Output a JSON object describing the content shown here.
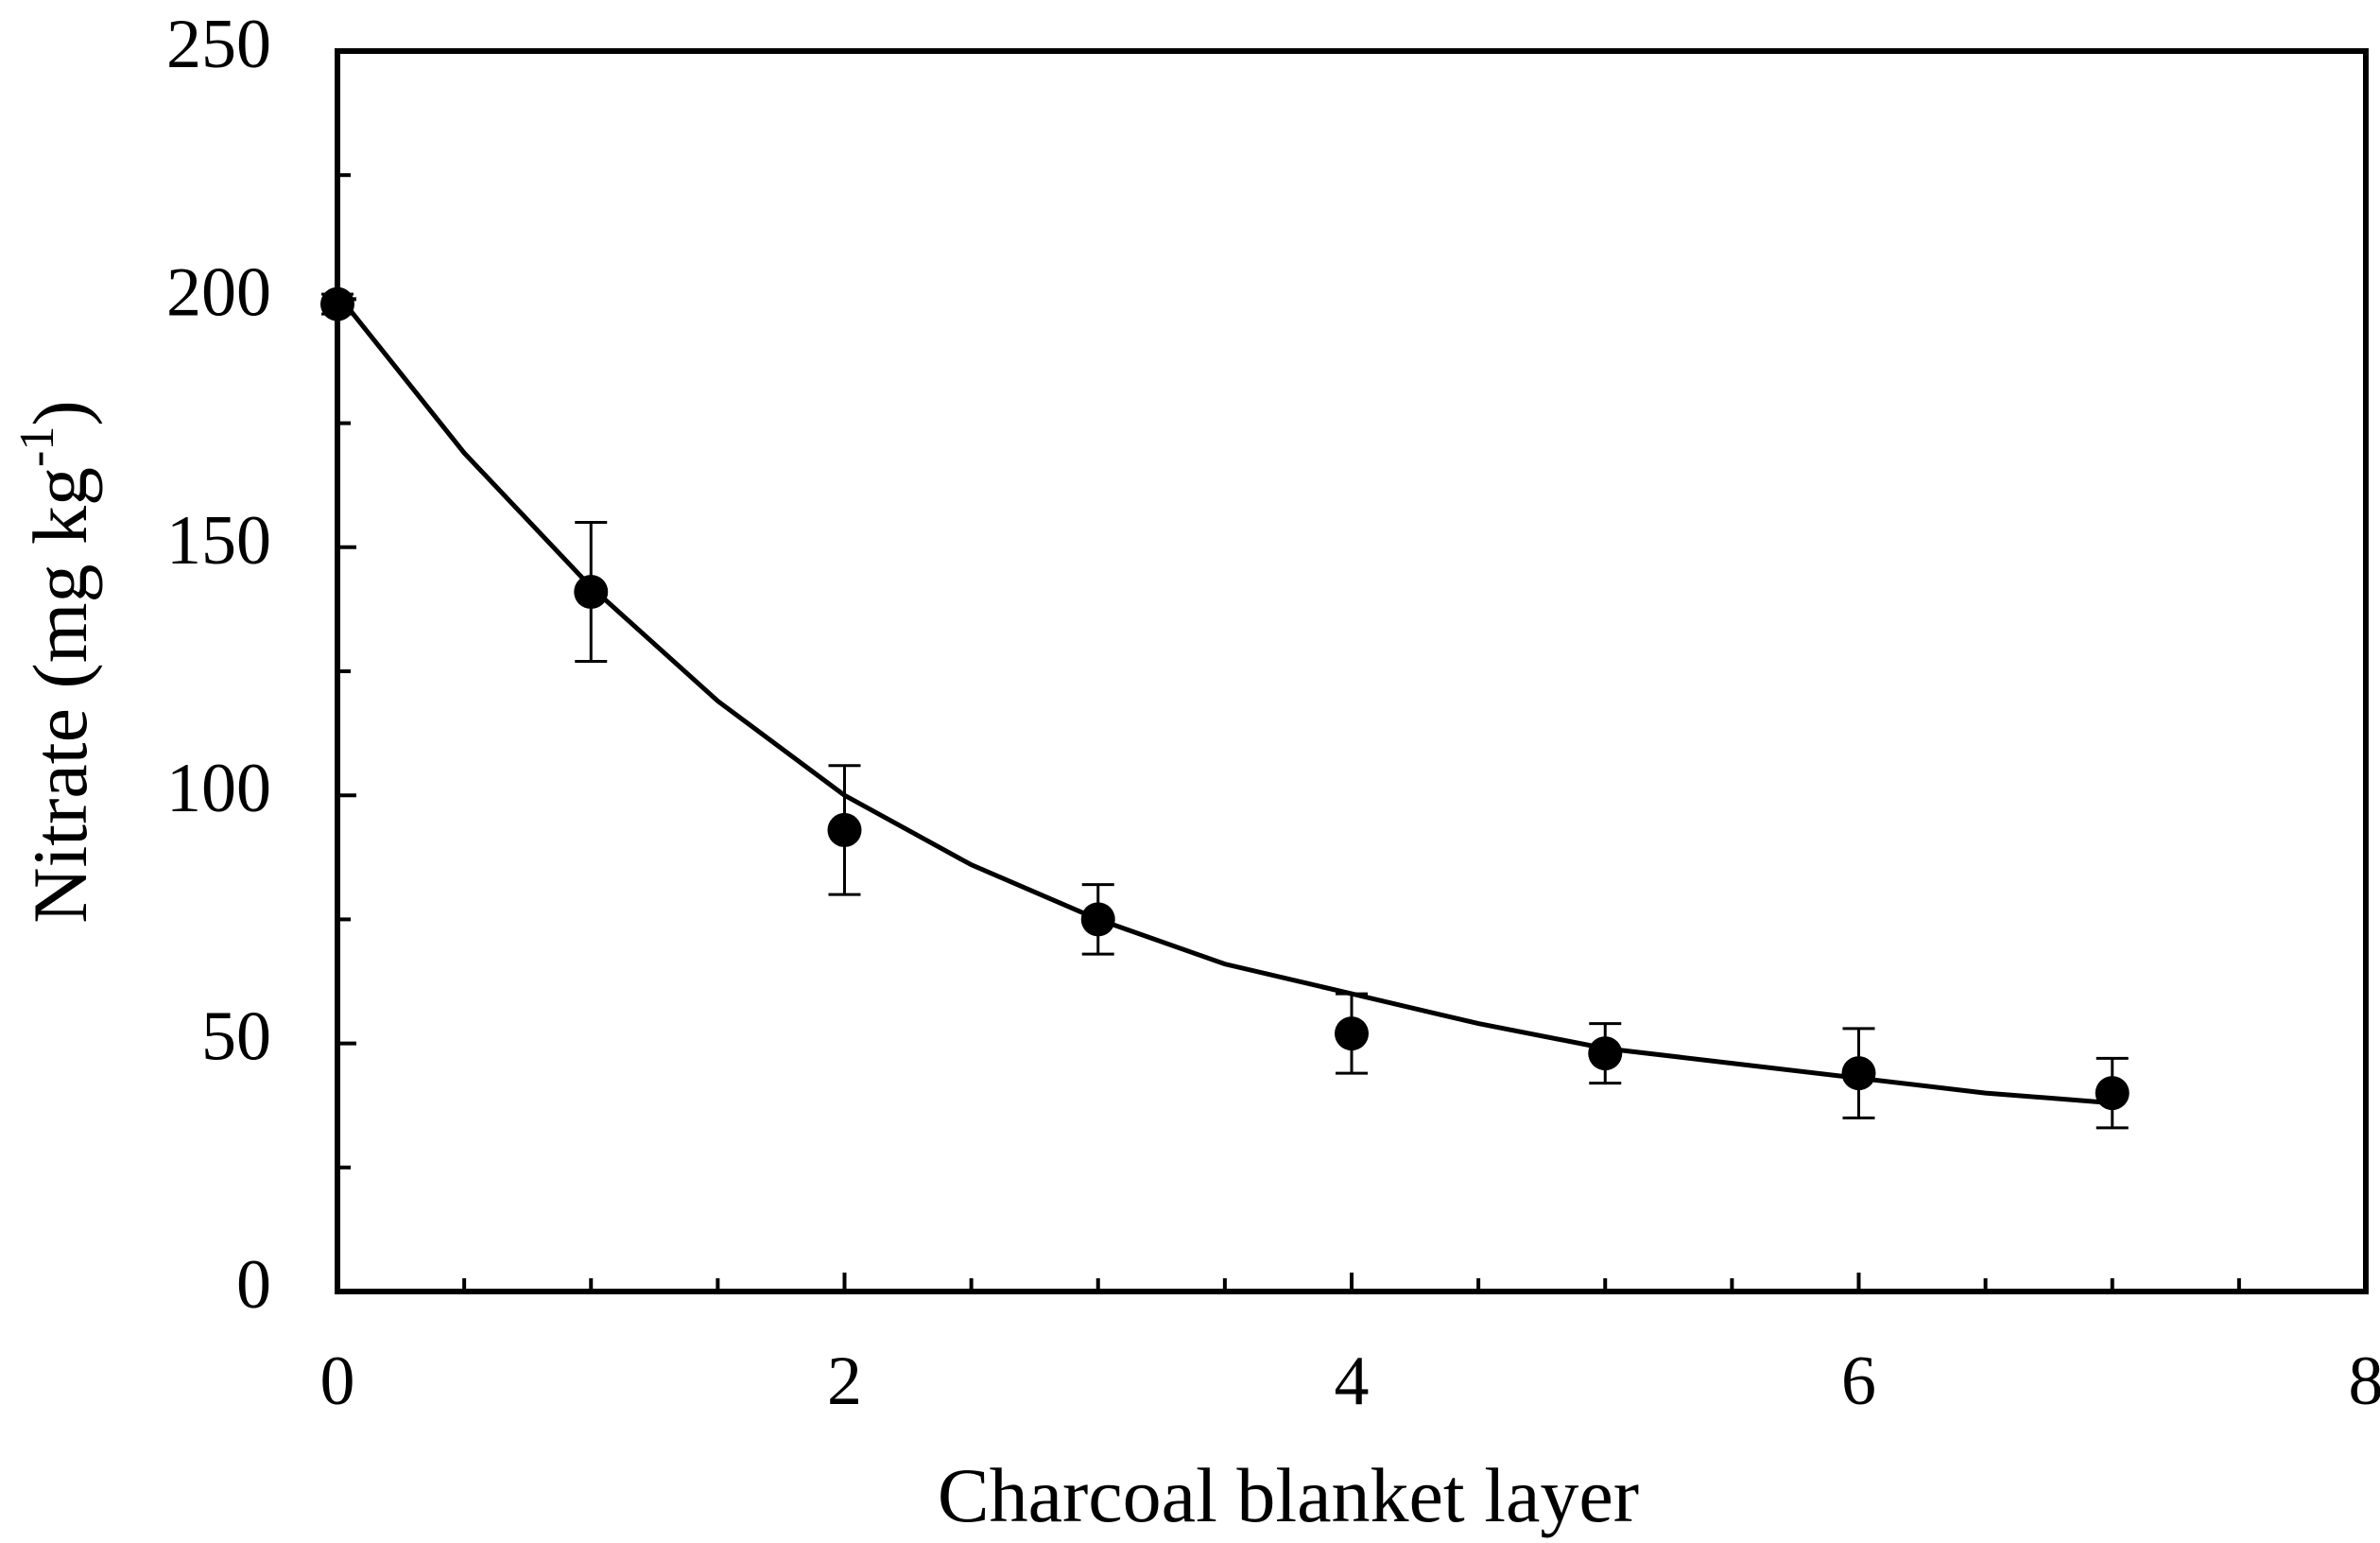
{
  "chart_data": {
    "type": "scatter",
    "x_label": "Charcoal blanket layer",
    "y_label": "Nitrate (mg kg",
    "y_label_sup": "-1",
    "y_label_end": ")",
    "xlim": [
      0,
      8
    ],
    "xticks": [
      0,
      2,
      4,
      6,
      8
    ],
    "xminorticks": [
      0.5,
      1,
      1.5,
      2.5,
      3,
      3.5,
      4.5,
      5,
      5.5,
      6.5,
      7,
      7.5
    ],
    "ylim": [
      0,
      250
    ],
    "yticks": [
      0,
      50,
      100,
      150,
      200,
      250
    ],
    "yminorticks": [
      25,
      75,
      125,
      175,
      225
    ],
    "grid": false,
    "series": [
      {
        "color": "#000000",
        "marker": "circle",
        "x": [
          0,
          1,
          2,
          3,
          4,
          5,
          6,
          7
        ],
        "values": [
          199,
          141,
          93,
          75,
          52,
          48,
          44,
          40
        ],
        "errors": [
          2,
          14,
          13,
          7,
          8,
          6,
          9,
          7
        ]
      },
      {
        "color": "#000000",
        "marker": "none",
        "x": [
          0,
          0.5,
          1,
          1.5,
          2,
          2.5,
          3,
          3.5,
          4,
          4.5,
          5,
          5.5,
          6,
          6.5,
          7
        ],
        "values": [
          201,
          169,
          142,
          119,
          100,
          86,
          75,
          66,
          60,
          54,
          49,
          46,
          43,
          40,
          38
        ]
      }
    ]
  }
}
